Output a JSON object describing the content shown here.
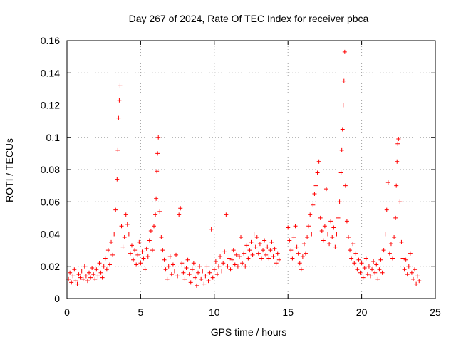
{
  "chart_data": {
    "type": "scatter",
    "title": "Day 267 of 2024, Rate Of TEC Index for receiver pbca",
    "xlabel": "GPS time / hours",
    "ylabel": "ROTI / TECUs",
    "xlim": [
      0,
      25
    ],
    "ylim": [
      0,
      0.16
    ],
    "xticks": [
      0,
      5,
      10,
      15,
      20,
      25
    ],
    "yticks": [
      0,
      0.02,
      0.04,
      0.06,
      0.08,
      0.1,
      0.12,
      0.14,
      0.16
    ],
    "ytick_labels": [
      "0",
      "0.02",
      "0.04",
      "0.06",
      "0.08",
      "0.1",
      "0.12",
      "0.14",
      "0.16"
    ],
    "marker": "+",
    "color": "#ff0000",
    "grid": true,
    "series": [
      {
        "name": "ROTI",
        "points": [
          [
            0.1,
            0.012
          ],
          [
            0.2,
            0.016
          ],
          [
            0.3,
            0.01
          ],
          [
            0.4,
            0.014
          ],
          [
            0.5,
            0.018
          ],
          [
            0.6,
            0.011
          ],
          [
            0.7,
            0.009
          ],
          [
            0.8,
            0.015
          ],
          [
            0.9,
            0.013
          ],
          [
            1.0,
            0.017
          ],
          [
            1.1,
            0.012
          ],
          [
            1.2,
            0.02
          ],
          [
            1.3,
            0.014
          ],
          [
            1.4,
            0.011
          ],
          [
            1.5,
            0.016
          ],
          [
            1.6,
            0.013
          ],
          [
            1.7,
            0.019
          ],
          [
            1.8,
            0.015
          ],
          [
            1.9,
            0.012
          ],
          [
            2.0,
            0.018
          ],
          [
            2.1,
            0.014
          ],
          [
            2.2,
            0.022
          ],
          [
            2.3,
            0.016
          ],
          [
            2.4,
            0.013
          ],
          [
            2.5,
            0.02
          ],
          [
            2.6,
            0.025
          ],
          [
            2.7,
            0.018
          ],
          [
            2.8,
            0.03
          ],
          [
            2.9,
            0.021
          ],
          [
            3.0,
            0.035
          ],
          [
            3.1,
            0.027
          ],
          [
            3.2,
            0.04
          ],
          [
            3.3,
            0.055
          ],
          [
            3.4,
            0.074
          ],
          [
            3.45,
            0.092
          ],
          [
            3.5,
            0.112
          ],
          [
            3.55,
            0.123
          ],
          [
            3.6,
            0.132
          ],
          [
            3.7,
            0.045
          ],
          [
            3.8,
            0.032
          ],
          [
            3.9,
            0.038
          ],
          [
            4.0,
            0.052
          ],
          [
            4.1,
            0.046
          ],
          [
            4.2,
            0.04
          ],
          [
            4.3,
            0.028
          ],
          [
            4.4,
            0.033
          ],
          [
            4.5,
            0.024
          ],
          [
            4.6,
            0.03
          ],
          [
            4.7,
            0.021
          ],
          [
            4.8,
            0.027
          ],
          [
            4.9,
            0.035
          ],
          [
            5.0,
            0.022
          ],
          [
            5.1,
            0.029
          ],
          [
            5.2,
            0.025
          ],
          [
            5.3,
            0.018
          ],
          [
            5.4,
            0.031
          ],
          [
            5.5,
            0.026
          ],
          [
            5.6,
            0.036
          ],
          [
            5.7,
            0.042
          ],
          [
            5.8,
            0.03
          ],
          [
            5.9,
            0.045
          ],
          [
            6.0,
            0.052
          ],
          [
            6.05,
            0.062
          ],
          [
            6.1,
            0.079
          ],
          [
            6.15,
            0.09
          ],
          [
            6.2,
            0.1
          ],
          [
            6.3,
            0.054
          ],
          [
            6.4,
            0.038
          ],
          [
            6.5,
            0.03
          ],
          [
            6.6,
            0.024
          ],
          [
            6.7,
            0.018
          ],
          [
            6.8,
            0.012
          ],
          [
            6.9,
            0.02
          ],
          [
            7.0,
            0.026
          ],
          [
            7.1,
            0.015
          ],
          [
            7.2,
            0.021
          ],
          [
            7.3,
            0.017
          ],
          [
            7.4,
            0.027
          ],
          [
            7.5,
            0.014
          ],
          [
            7.6,
            0.052
          ],
          [
            7.7,
            0.056
          ],
          [
            7.8,
            0.022
          ],
          [
            7.9,
            0.016
          ],
          [
            8.0,
            0.012
          ],
          [
            8.1,
            0.019
          ],
          [
            8.2,
            0.024
          ],
          [
            8.3,
            0.015
          ],
          [
            8.4,
            0.01
          ],
          [
            8.5,
            0.018
          ],
          [
            8.6,
            0.022
          ],
          [
            8.7,
            0.013
          ],
          [
            8.8,
            0.008
          ],
          [
            8.9,
            0.016
          ],
          [
            9.0,
            0.02
          ],
          [
            9.1,
            0.012
          ],
          [
            9.2,
            0.017
          ],
          [
            9.3,
            0.009
          ],
          [
            9.4,
            0.014
          ],
          [
            9.5,
            0.02
          ],
          [
            9.6,
            0.011
          ],
          [
            9.7,
            0.016
          ],
          [
            9.8,
            0.043
          ],
          [
            9.9,
            0.013
          ],
          [
            10.0,
            0.018
          ],
          [
            10.1,
            0.023
          ],
          [
            10.2,
            0.015
          ],
          [
            10.3,
            0.02
          ],
          [
            10.4,
            0.026
          ],
          [
            10.5,
            0.017
          ],
          [
            10.6,
            0.022
          ],
          [
            10.7,
            0.029
          ],
          [
            10.8,
            0.052
          ],
          [
            10.9,
            0.02
          ],
          [
            11.0,
            0.025
          ],
          [
            11.1,
            0.018
          ],
          [
            11.2,
            0.024
          ],
          [
            11.3,
            0.03
          ],
          [
            11.4,
            0.021
          ],
          [
            11.5,
            0.027
          ],
          [
            11.6,
            0.02
          ],
          [
            11.7,
            0.026
          ],
          [
            11.8,
            0.038
          ],
          [
            11.9,
            0.022
          ],
          [
            12.0,
            0.028
          ],
          [
            12.1,
            0.02
          ],
          [
            12.2,
            0.033
          ],
          [
            12.3,
            0.025
          ],
          [
            12.4,
            0.03
          ],
          [
            12.5,
            0.035
          ],
          [
            12.6,
            0.027
          ],
          [
            12.7,
            0.04
          ],
          [
            12.8,
            0.032
          ],
          [
            12.9,
            0.038
          ],
          [
            13.0,
            0.028
          ],
          [
            13.1,
            0.034
          ],
          [
            13.2,
            0.025
          ],
          [
            13.3,
            0.03
          ],
          [
            13.4,
            0.036
          ],
          [
            13.5,
            0.027
          ],
          [
            13.6,
            0.032
          ],
          [
            13.7,
            0.025
          ],
          [
            13.8,
            0.03
          ],
          [
            13.9,
            0.035
          ],
          [
            14.0,
            0.026
          ],
          [
            14.1,
            0.031
          ],
          [
            14.2,
            0.022
          ],
          [
            14.3,
            0.028
          ],
          [
            14.4,
            0.024
          ],
          [
            15.0,
            0.044
          ],
          [
            15.1,
            0.036
          ],
          [
            15.2,
            0.03
          ],
          [
            15.3,
            0.025
          ],
          [
            15.4,
            0.038
          ],
          [
            15.5,
            0.045
          ],
          [
            15.6,
            0.032
          ],
          [
            15.7,
            0.028
          ],
          [
            15.8,
            0.022
          ],
          [
            15.9,
            0.018
          ],
          [
            16.0,
            0.026
          ],
          [
            16.1,
            0.034
          ],
          [
            16.2,
            0.028
          ],
          [
            16.3,
            0.038
          ],
          [
            16.4,
            0.045
          ],
          [
            16.5,
            0.052
          ],
          [
            16.6,
            0.04
          ],
          [
            16.7,
            0.058
          ],
          [
            16.8,
            0.065
          ],
          [
            16.9,
            0.07
          ],
          [
            17.0,
            0.078
          ],
          [
            17.1,
            0.085
          ],
          [
            17.2,
            0.05
          ],
          [
            17.3,
            0.042
          ],
          [
            17.4,
            0.036
          ],
          [
            17.5,
            0.045
          ],
          [
            17.6,
            0.068
          ],
          [
            17.7,
            0.04
          ],
          [
            17.8,
            0.034
          ],
          [
            17.9,
            0.048
          ],
          [
            18.0,
            0.038
          ],
          [
            18.1,
            0.044
          ],
          [
            18.2,
            0.032
          ],
          [
            18.3,
            0.04
          ],
          [
            18.4,
            0.05
          ],
          [
            18.5,
            0.06
          ],
          [
            18.6,
            0.078
          ],
          [
            18.65,
            0.092
          ],
          [
            18.7,
            0.105
          ],
          [
            18.75,
            0.12
          ],
          [
            18.8,
            0.135
          ],
          [
            18.85,
            0.153
          ],
          [
            18.9,
            0.07
          ],
          [
            19.0,
            0.048
          ],
          [
            19.1,
            0.038
          ],
          [
            19.2,
            0.03
          ],
          [
            19.3,
            0.025
          ],
          [
            19.4,
            0.034
          ],
          [
            19.5,
            0.022
          ],
          [
            19.6,
            0.028
          ],
          [
            19.7,
            0.018
          ],
          [
            19.8,
            0.024
          ],
          [
            19.9,
            0.016
          ],
          [
            20.0,
            0.022
          ],
          [
            20.1,
            0.013
          ],
          [
            20.2,
            0.019
          ],
          [
            20.3,
            0.025
          ],
          [
            20.4,
            0.015
          ],
          [
            20.5,
            0.02
          ],
          [
            20.6,
            0.014
          ],
          [
            20.7,
            0.018
          ],
          [
            20.8,
            0.023
          ],
          [
            20.9,
            0.016
          ],
          [
            21.0,
            0.021
          ],
          [
            21.1,
            0.012
          ],
          [
            21.2,
            0.018
          ],
          [
            21.3,
            0.024
          ],
          [
            21.4,
            0.016
          ],
          [
            21.5,
            0.03
          ],
          [
            21.6,
            0.04
          ],
          [
            21.7,
            0.055
          ],
          [
            21.8,
            0.072
          ],
          [
            21.9,
            0.028
          ],
          [
            22.0,
            0.034
          ],
          [
            22.1,
            0.025
          ],
          [
            22.2,
            0.038
          ],
          [
            22.3,
            0.05
          ],
          [
            22.35,
            0.07
          ],
          [
            22.4,
            0.085
          ],
          [
            22.45,
            0.096
          ],
          [
            22.5,
            0.099
          ],
          [
            22.6,
            0.06
          ],
          [
            22.7,
            0.035
          ],
          [
            22.8,
            0.025
          ],
          [
            22.9,
            0.018
          ],
          [
            23.0,
            0.024
          ],
          [
            23.1,
            0.015
          ],
          [
            23.2,
            0.02
          ],
          [
            23.3,
            0.028
          ],
          [
            23.4,
            0.016
          ],
          [
            23.5,
            0.012
          ],
          [
            23.6,
            0.018
          ],
          [
            23.7,
            0.009
          ],
          [
            23.8,
            0.014
          ],
          [
            23.9,
            0.011
          ]
        ]
      }
    ]
  }
}
